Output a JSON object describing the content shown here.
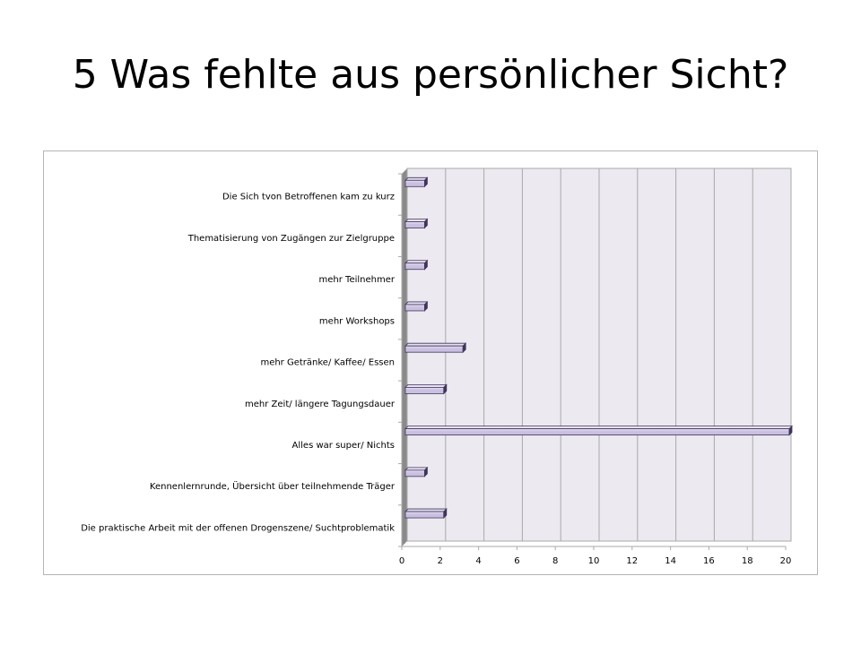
{
  "slide": {
    "title": "5 Was fehlte aus persönlicher Sicht?"
  },
  "chart_data": {
    "type": "bar",
    "orientation": "horizontal",
    "title": "",
    "xlabel": "",
    "ylabel": "",
    "categories": [
      "Die Sich tvon Betroffenen kam zu kurz",
      "Thematisierung von Zugängen zur Zielgruppe",
      "mehr Teilnehmer",
      "mehr Workshops",
      "mehr Getränke/ Kaffee/ Essen",
      "mehr Zeit/ längere Tagungsdauer",
      "Alles war super/ Nichts",
      "Kennenlernrunde, Übersicht über teilnehmende Träger",
      "Die praktische Arbeit mit der offenen Drogenszene/ Suchtproblematik"
    ],
    "values": [
      1,
      1,
      1,
      1,
      3,
      2,
      20,
      1,
      2
    ],
    "xlim": [
      0,
      20
    ],
    "xticks": [
      0,
      2,
      4,
      6,
      8,
      10,
      12,
      14,
      16,
      18,
      20
    ],
    "grid": true,
    "legend": "none",
    "colors": {
      "bar_fill": "#c9bfe0",
      "bar_light": "#e6e0f2",
      "bar_stroke": "#3f3559",
      "plot_bg": "#ece9f1",
      "grid": "#a9a9a9",
      "wall_side": "#8a8a8a"
    }
  }
}
